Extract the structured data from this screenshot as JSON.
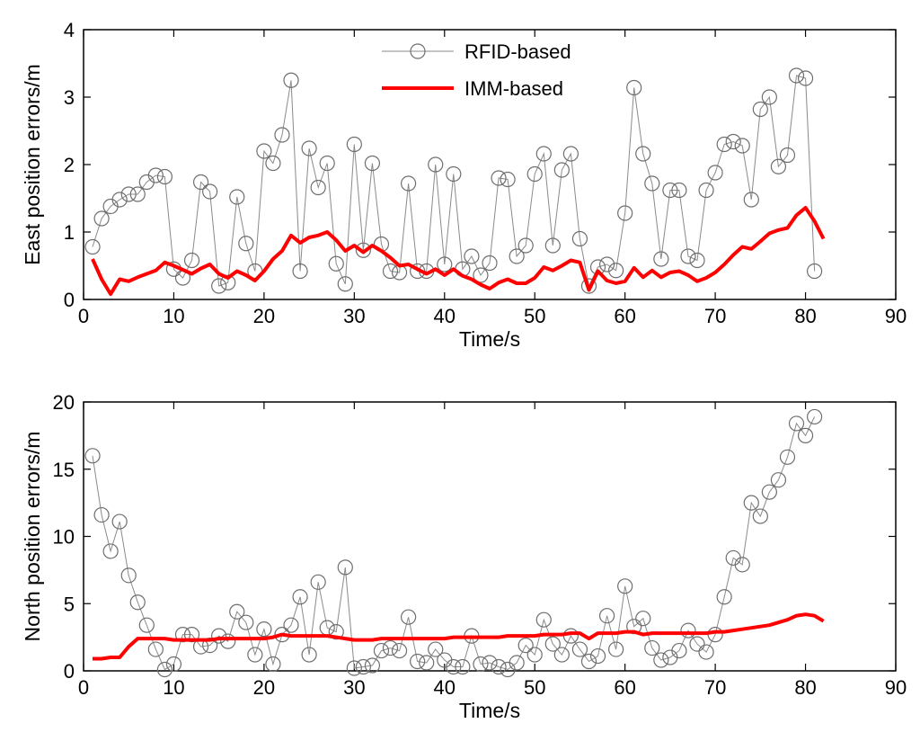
{
  "chart_data": [
    {
      "type": "line",
      "xlabel": "Time/s",
      "ylabel": "East position errors/m",
      "xlim": [
        0,
        90
      ],
      "ylim": [
        0,
        4
      ],
      "xticks": [
        "0",
        "10",
        "20",
        "30",
        "40",
        "50",
        "60",
        "70",
        "80",
        "90"
      ],
      "yticks": [
        "0",
        "1",
        "2",
        "3",
        "4"
      ],
      "legend": {
        "placement": "top-center",
        "entries": [
          "RFID-based",
          "IMM-based"
        ]
      },
      "series": [
        {
          "name": "RFID-based",
          "color": "#808080",
          "marker": "circle",
          "x": [
            1,
            2,
            3,
            4,
            5,
            6,
            7,
            8,
            9,
            10,
            11,
            12,
            13,
            14,
            15,
            16,
            17,
            18,
            19,
            20,
            21,
            22,
            23,
            24,
            25,
            26,
            27,
            28,
            29,
            30,
            31,
            32,
            33,
            34,
            35,
            36,
            37,
            38,
            39,
            40,
            41,
            42,
            43,
            44,
            45,
            46,
            47,
            48,
            49,
            50,
            51,
            52,
            53,
            54,
            55,
            56,
            57,
            58,
            59,
            60,
            61,
            62,
            63,
            64,
            65,
            66,
            67,
            68,
            69,
            70,
            71,
            72,
            73,
            74,
            75,
            76,
            77,
            78,
            79,
            80,
            81
          ],
          "y": [
            0.78,
            1.2,
            1.38,
            1.48,
            1.56,
            1.56,
            1.74,
            1.84,
            1.82,
            0.45,
            0.32,
            0.58,
            1.74,
            1.6,
            0.2,
            0.25,
            1.52,
            0.83,
            0.42,
            2.2,
            2.02,
            2.44,
            3.25,
            0.42,
            2.24,
            1.66,
            2.02,
            0.53,
            0.23,
            2.3,
            0.73,
            2.02,
            0.82,
            0.42,
            0.4,
            1.72,
            0.42,
            0.42,
            2.0,
            0.52,
            1.86,
            0.45,
            0.64,
            0.36,
            0.54,
            1.8,
            1.78,
            0.64,
            0.8,
            1.86,
            2.16,
            0.8,
            1.92,
            2.16,
            0.9,
            0.2,
            0.48,
            0.52,
            0.43,
            1.28,
            3.14,
            2.16,
            1.72,
            0.6,
            1.62,
            1.62,
            0.64,
            0.58,
            1.62,
            1.88,
            2.3,
            2.34,
            2.28,
            1.48,
            2.82,
            3.0,
            1.97,
            2.14,
            3.32,
            3.28,
            0.42
          ]
        },
        {
          "name": "IMM-based",
          "color": "#ff0000",
          "x": [
            1,
            2,
            3,
            4,
            5,
            6,
            7,
            8,
            9,
            10,
            11,
            12,
            13,
            14,
            15,
            16,
            17,
            18,
            19,
            20,
            21,
            22,
            23,
            24,
            25,
            26,
            27,
            28,
            29,
            30,
            31,
            32,
            33,
            34,
            35,
            36,
            37,
            38,
            39,
            40,
            41,
            42,
            43,
            44,
            45,
            46,
            47,
            48,
            49,
            50,
            51,
            52,
            53,
            54,
            55,
            56,
            57,
            58,
            59,
            60,
            61,
            62,
            63,
            64,
            65,
            66,
            67,
            68,
            69,
            70,
            71,
            72,
            73,
            74,
            75,
            76,
            77,
            78,
            79,
            80,
            81,
            82
          ],
          "y": [
            0.6,
            0.3,
            0.08,
            0.3,
            0.27,
            0.33,
            0.38,
            0.43,
            0.55,
            0.5,
            0.44,
            0.38,
            0.46,
            0.52,
            0.38,
            0.32,
            0.42,
            0.36,
            0.28,
            0.42,
            0.6,
            0.72,
            0.95,
            0.84,
            0.92,
            0.95,
            1.0,
            0.88,
            0.72,
            0.8,
            0.7,
            0.8,
            0.72,
            0.62,
            0.5,
            0.52,
            0.45,
            0.38,
            0.45,
            0.36,
            0.45,
            0.35,
            0.3,
            0.22,
            0.16,
            0.25,
            0.3,
            0.24,
            0.24,
            0.32,
            0.48,
            0.43,
            0.5,
            0.58,
            0.55,
            0.14,
            0.42,
            0.28,
            0.24,
            0.27,
            0.47,
            0.33,
            0.43,
            0.33,
            0.4,
            0.42,
            0.36,
            0.27,
            0.32,
            0.4,
            0.52,
            0.66,
            0.78,
            0.75,
            0.86,
            0.98,
            1.03,
            1.06,
            1.25,
            1.36,
            1.16,
            0.9
          ]
        }
      ]
    },
    {
      "type": "line",
      "xlabel": "Time/s",
      "ylabel": "North position errors/m",
      "xlim": [
        0,
        90
      ],
      "ylim": [
        0,
        20
      ],
      "xticks": [
        "0",
        "10",
        "20",
        "30",
        "40",
        "50",
        "60",
        "70",
        "80",
        "90"
      ],
      "yticks": [
        "0",
        "5",
        "10",
        "15",
        "20"
      ],
      "series": [
        {
          "name": "RFID-based",
          "color": "#808080",
          "marker": "circle",
          "x": [
            1,
            2,
            3,
            4,
            5,
            6,
            7,
            8,
            9,
            10,
            11,
            12,
            13,
            14,
            15,
            16,
            17,
            18,
            19,
            20,
            21,
            22,
            23,
            24,
            25,
            26,
            27,
            28,
            29,
            30,
            31,
            32,
            33,
            34,
            35,
            36,
            37,
            38,
            39,
            40,
            41,
            42,
            43,
            44,
            45,
            46,
            47,
            48,
            49,
            50,
            51,
            52,
            53,
            54,
            55,
            56,
            57,
            58,
            59,
            60,
            61,
            62,
            63,
            64,
            65,
            66,
            67,
            68,
            69,
            70,
            71,
            72,
            73,
            74,
            75,
            76,
            77,
            78,
            79,
            80,
            81
          ],
          "y": [
            16.0,
            11.6,
            8.9,
            11.1,
            7.1,
            5.1,
            3.4,
            1.6,
            0.1,
            0.5,
            2.7,
            2.7,
            1.8,
            1.9,
            2.6,
            2.2,
            4.4,
            3.6,
            1.2,
            3.1,
            0.5,
            2.7,
            3.4,
            5.5,
            1.2,
            6.6,
            3.2,
            2.9,
            7.7,
            0.2,
            0.3,
            0.4,
            1.5,
            1.7,
            1.5,
            4.0,
            0.7,
            0.6,
            1.6,
            0.8,
            0.3,
            0.3,
            2.6,
            0.5,
            0.6,
            0.3,
            0.1,
            0.6,
            1.9,
            1.2,
            3.8,
            2.0,
            1.2,
            2.6,
            1.6,
            0.7,
            1.1,
            4.1,
            1.6,
            6.3,
            3.3,
            3.9,
            1.7,
            0.8,
            1.0,
            1.5,
            3.0,
            2.0,
            1.4,
            2.7,
            5.5,
            8.4,
            7.9,
            12.5,
            11.5,
            13.3,
            14.2,
            15.9,
            18.4,
            17.5,
            18.9
          ]
        },
        {
          "name": "IMM-based",
          "color": "#ff0000",
          "x": [
            1,
            2,
            3,
            4,
            5,
            6,
            7,
            8,
            9,
            10,
            11,
            12,
            13,
            14,
            15,
            16,
            17,
            18,
            19,
            20,
            21,
            22,
            23,
            24,
            25,
            26,
            27,
            28,
            29,
            30,
            31,
            32,
            33,
            34,
            35,
            36,
            37,
            38,
            39,
            40,
            41,
            42,
            43,
            44,
            45,
            46,
            47,
            48,
            49,
            50,
            51,
            52,
            53,
            54,
            55,
            56,
            57,
            58,
            59,
            60,
            61,
            62,
            63,
            64,
            65,
            66,
            67,
            68,
            69,
            70,
            71,
            72,
            73,
            74,
            75,
            76,
            77,
            78,
            79,
            80,
            81,
            82
          ],
          "y": [
            0.9,
            0.9,
            1.0,
            1.0,
            1.8,
            2.4,
            2.4,
            2.4,
            2.4,
            2.3,
            2.3,
            2.3,
            2.3,
            2.3,
            2.4,
            2.4,
            2.4,
            2.4,
            2.4,
            2.4,
            2.5,
            2.7,
            2.6,
            2.6,
            2.6,
            2.6,
            2.6,
            2.5,
            2.4,
            2.3,
            2.3,
            2.3,
            2.4,
            2.4,
            2.4,
            2.4,
            2.4,
            2.4,
            2.4,
            2.4,
            2.5,
            2.5,
            2.5,
            2.5,
            2.5,
            2.5,
            2.6,
            2.6,
            2.6,
            2.6,
            2.7,
            2.7,
            2.7,
            2.8,
            2.8,
            2.4,
            2.8,
            2.8,
            2.8,
            2.9,
            2.9,
            2.7,
            2.8,
            2.8,
            2.8,
            2.8,
            2.8,
            2.8,
            2.8,
            2.9,
            2.9,
            3.0,
            3.1,
            3.2,
            3.3,
            3.4,
            3.6,
            3.8,
            4.1,
            4.2,
            4.1,
            3.7
          ]
        }
      ]
    }
  ]
}
